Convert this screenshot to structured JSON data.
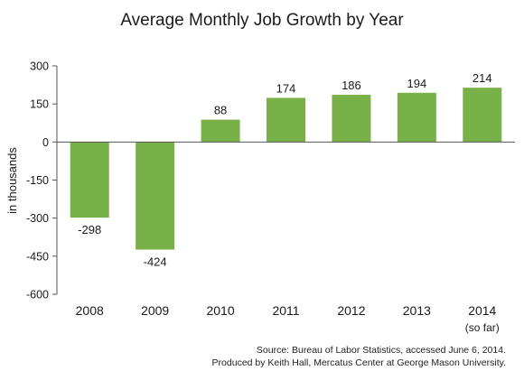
{
  "chart_data": {
    "type": "bar",
    "title": "Average Monthly Job Growth by Year",
    "ylabel": "in thousands",
    "xlabel": "",
    "categories": [
      "2008",
      "2009",
      "2010",
      "2011",
      "2012",
      "2013",
      "2014"
    ],
    "category_sublabels": [
      "",
      "",
      "",
      "",
      "",
      "",
      "(so far)"
    ],
    "values": [
      -298,
      -424,
      88,
      174,
      186,
      194,
      214
    ],
    "data_labels": [
      "-298",
      "-424",
      "88",
      "174",
      "186",
      "194",
      "214"
    ],
    "ylim": [
      -600,
      300
    ],
    "yticks": [
      300,
      150,
      0,
      -150,
      -300,
      -450,
      -600
    ],
    "ytick_labels": [
      "300",
      "150",
      "0",
      "-150",
      "-300",
      "-450",
      "-600"
    ],
    "grid": false,
    "legend": "none",
    "bar_color": "#78b147",
    "axis_color": "#555555"
  },
  "source": {
    "line1": "Source: Bureau of Labor Statistics, accessed June 6, 2014.",
    "line2": "Produced by Keith Hall, Mercatus Center at George Mason University."
  }
}
